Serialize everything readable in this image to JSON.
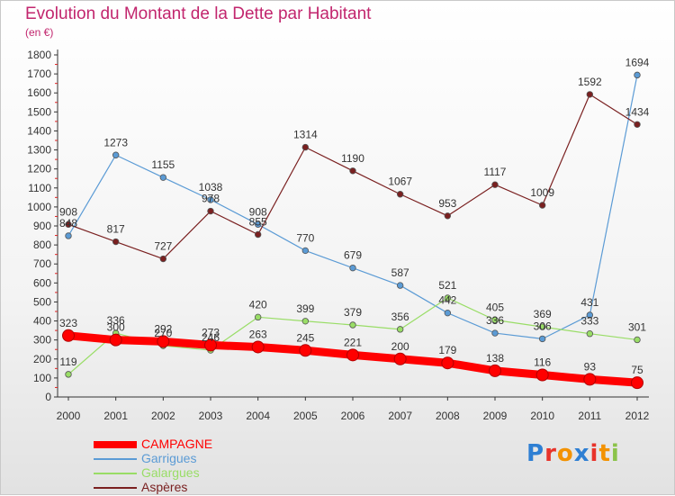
{
  "chart_data": {
    "type": "line",
    "title": "Evolution du Montant de la Dette par Habitant",
    "subtitle": "(en €)",
    "x": [
      2000,
      2001,
      2002,
      2003,
      2004,
      2005,
      2006,
      2007,
      2008,
      2009,
      2010,
      2011,
      2012
    ],
    "ylim": [
      0,
      1800
    ],
    "ytick_step": 100,
    "grid": false,
    "legend_position": "bottom-left",
    "series": [
      {
        "name": "CAMPAGNE",
        "color": "#ff0000",
        "values": [
          323,
          300,
          292,
          273,
          263,
          245,
          221,
          200,
          179,
          138,
          116,
          93,
          75
        ]
      },
      {
        "name": "Garrigues",
        "color": "#5b9bd5",
        "values": [
          848,
          1273,
          1155,
          1038,
          908,
          770,
          679,
          587,
          442,
          336,
          306,
          431,
          1694
        ]
      },
      {
        "name": "Galargues",
        "color": "#99dd66",
        "values": [
          119,
          336,
          270,
          246,
          420,
          399,
          379,
          356,
          521,
          405,
          369,
          333,
          301
        ]
      },
      {
        "name": "Aspères",
        "color": "#7a2020",
        "values": [
          908,
          817,
          727,
          978,
          855,
          1314,
          1190,
          1067,
          953,
          1117,
          1009,
          1592,
          1434
        ]
      }
    ]
  },
  "logo": {
    "text": "Proxiti",
    "letter_colors": [
      "#2e7fd3",
      "#e8332a",
      "#f39200",
      "#2e7fd3",
      "#e8332a",
      "#f39200",
      "#8bc34a"
    ]
  }
}
